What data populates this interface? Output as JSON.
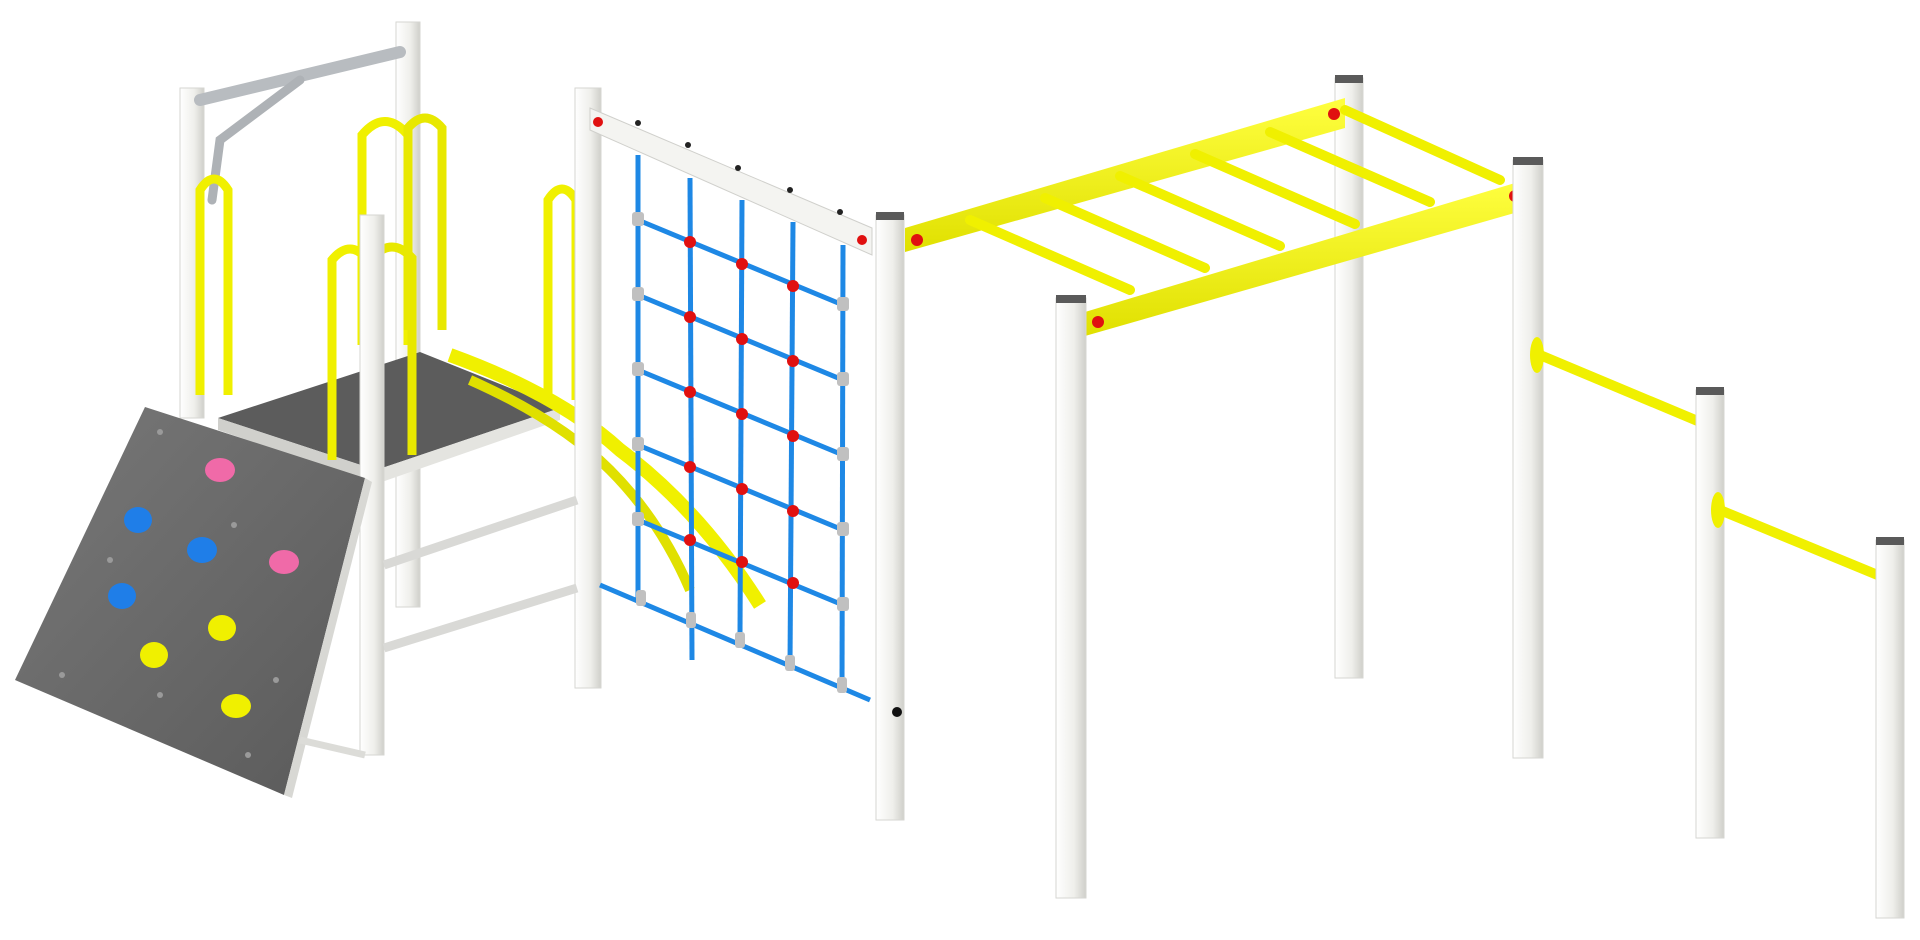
{
  "colors": {
    "background": "#ffffff",
    "post": "#f2f2ef",
    "post_shade": "#d8d8d4",
    "post_cap": "#5a5a5a",
    "accent_yellow": "#f5f500",
    "yellow_shade": "#c8c800",
    "panel_grey": "#6b6b6b",
    "deck_grey": "#5c5c5c",
    "net_blue": "#1e88e5",
    "knot_red": "#e01010",
    "hold_pink": "#f06aa8",
    "hold_blue": "#1f7ee8",
    "hold_yellow": "#f0f000",
    "steel": "#c8ccd0"
  },
  "structure": {
    "components": [
      "climbing-wall",
      "play-deck",
      "rope-net",
      "monkey-bars",
      "pull-up-bars"
    ],
    "holds": [
      {
        "color": "pink"
      },
      {
        "color": "blue"
      },
      {
        "color": "blue"
      },
      {
        "color": "pink"
      },
      {
        "color": "blue"
      },
      {
        "color": "yellow"
      },
      {
        "color": "yellow"
      },
      {
        "color": "yellow"
      }
    ],
    "monkey_bar_rungs": 6,
    "pull_up_bars": 2
  }
}
